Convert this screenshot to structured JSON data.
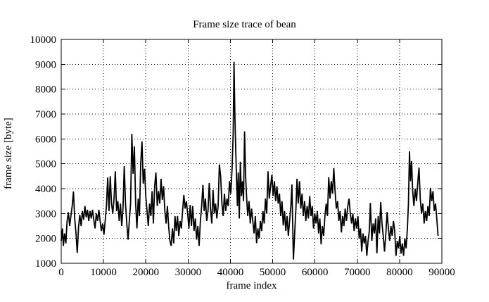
{
  "chart_data": {
    "type": "line",
    "title": "Frame size trace of bean",
    "xlabel": "frame index",
    "ylabel": "frame size [byte]",
    "xlim": [
      0,
      90000
    ],
    "ylim": [
      1000,
      10000
    ],
    "xticks": [
      0,
      10000,
      20000,
      30000,
      40000,
      50000,
      60000,
      70000,
      80000,
      90000
    ],
    "yticks": [
      1000,
      2000,
      3000,
      4000,
      5000,
      6000,
      7000,
      8000,
      9000,
      10000
    ],
    "grid": "dotted",
    "legend_position": "none",
    "colors": {
      "line": "#000000",
      "background": "#ffffff",
      "grid": "#000000",
      "text": "#000000"
    },
    "series": [
      {
        "name": "frame size trace",
        "points": [
          [
            0,
            1900
          ],
          [
            300,
            2400
          ],
          [
            500,
            1700
          ],
          [
            800,
            2200
          ],
          [
            1100,
            1800
          ],
          [
            1400,
            2700
          ],
          [
            1700,
            3050
          ],
          [
            2000,
            2500
          ],
          [
            2300,
            2900
          ],
          [
            2600,
            3300
          ],
          [
            2900,
            3890
          ],
          [
            3200,
            2800
          ],
          [
            3500,
            2200
          ],
          [
            3800,
            1420
          ],
          [
            4100,
            2450
          ],
          [
            4400,
            2950
          ],
          [
            4700,
            2500
          ],
          [
            5000,
            3100
          ],
          [
            5300,
            2750
          ],
          [
            5600,
            3300
          ],
          [
            5900,
            2850
          ],
          [
            6200,
            3150
          ],
          [
            6500,
            2700
          ],
          [
            6800,
            3100
          ],
          [
            7100,
            2800
          ],
          [
            7400,
            3150
          ],
          [
            7700,
            2750
          ],
          [
            8000,
            2400
          ],
          [
            8300,
            3000
          ],
          [
            8600,
            2700
          ],
          [
            8900,
            3150
          ],
          [
            9200,
            2700
          ],
          [
            9500,
            2300
          ],
          [
            9800,
            2600
          ],
          [
            10100,
            2150
          ],
          [
            10400,
            2700
          ],
          [
            10700,
            3300
          ],
          [
            11000,
            4450
          ],
          [
            11300,
            3100
          ],
          [
            11600,
            4500
          ],
          [
            11900,
            3400
          ],
          [
            12200,
            3000
          ],
          [
            12500,
            3600
          ],
          [
            12800,
            4700
          ],
          [
            13100,
            3100
          ],
          [
            13400,
            3500
          ],
          [
            13700,
            2700
          ],
          [
            14000,
            3400
          ],
          [
            14300,
            2500
          ],
          [
            14600,
            3200
          ],
          [
            14900,
            4900
          ],
          [
            15200,
            3400
          ],
          [
            15500,
            2600
          ],
          [
            15800,
            1950
          ],
          [
            16100,
            2700
          ],
          [
            16400,
            3400
          ],
          [
            16700,
            6200
          ],
          [
            17000,
            4600
          ],
          [
            17300,
            5700
          ],
          [
            17600,
            3400
          ],
          [
            17900,
            2400
          ],
          [
            18200,
            3600
          ],
          [
            18500,
            2900
          ],
          [
            18800,
            5000
          ],
          [
            19100,
            5900
          ],
          [
            19400,
            4200
          ],
          [
            19700,
            4800
          ],
          [
            20000,
            3700
          ],
          [
            20300,
            3100
          ],
          [
            20600,
            2500
          ],
          [
            20900,
            3400
          ],
          [
            21200,
            2900
          ],
          [
            21500,
            3900
          ],
          [
            21800,
            2600
          ],
          [
            22100,
            4100
          ],
          [
            22400,
            4650
          ],
          [
            22700,
            3300
          ],
          [
            23000,
            3900
          ],
          [
            23300,
            3400
          ],
          [
            23600,
            4400
          ],
          [
            23900,
            3550
          ],
          [
            24200,
            4100
          ],
          [
            24500,
            3100
          ],
          [
            24800,
            2600
          ],
          [
            25100,
            3300
          ],
          [
            25400,
            2500
          ],
          [
            25700,
            1900
          ],
          [
            26000,
            1700
          ],
          [
            26300,
            2400
          ],
          [
            26600,
            1800
          ],
          [
            26900,
            2900
          ],
          [
            27200,
            2300
          ],
          [
            27500,
            2900
          ],
          [
            27800,
            2100
          ],
          [
            28100,
            2700
          ],
          [
            28400,
            2400
          ],
          [
            28700,
            3100
          ],
          [
            29000,
            3750
          ],
          [
            29300,
            3200
          ],
          [
            29600,
            3500
          ],
          [
            29900,
            3000
          ],
          [
            30200,
            2400
          ],
          [
            30500,
            3350
          ],
          [
            30800,
            2500
          ],
          [
            31100,
            3300
          ],
          [
            31400,
            2300
          ],
          [
            31700,
            2800
          ],
          [
            32000,
            1950
          ],
          [
            32300,
            2500
          ],
          [
            32600,
            1700
          ],
          [
            32900,
            2700
          ],
          [
            33200,
            3300
          ],
          [
            33500,
            4150
          ],
          [
            33800,
            3100
          ],
          [
            34100,
            3600
          ],
          [
            34400,
            2700
          ],
          [
            34700,
            3100
          ],
          [
            35000,
            4230
          ],
          [
            35300,
            3200
          ],
          [
            35600,
            2600
          ],
          [
            35900,
            3950
          ],
          [
            36200,
            3000
          ],
          [
            36500,
            3400
          ],
          [
            36800,
            2800
          ],
          [
            37100,
            3300
          ],
          [
            37400,
            4970
          ],
          [
            37700,
            4500
          ],
          [
            38000,
            3400
          ],
          [
            38300,
            2900
          ],
          [
            38600,
            3800
          ],
          [
            38900,
            3100
          ],
          [
            39200,
            3600
          ],
          [
            39500,
            3300
          ],
          [
            39800,
            4300
          ],
          [
            40100,
            3800
          ],
          [
            40400,
            4790
          ],
          [
            40650,
            6200
          ],
          [
            40850,
            9100
          ],
          [
            41050,
            7000
          ],
          [
            41250,
            5600
          ],
          [
            41450,
            4400
          ],
          [
            41650,
            3300
          ],
          [
            41850,
            4650
          ],
          [
            42100,
            2800
          ],
          [
            42350,
            5080
          ],
          [
            42600,
            3700
          ],
          [
            42850,
            4300
          ],
          [
            43100,
            3500
          ],
          [
            43350,
            6300
          ],
          [
            43600,
            4500
          ],
          [
            43850,
            3600
          ],
          [
            44100,
            2900
          ],
          [
            44400,
            3500
          ],
          [
            44700,
            2600
          ],
          [
            45000,
            3200
          ],
          [
            45300,
            2700
          ],
          [
            45600,
            2200
          ],
          [
            45900,
            2900
          ],
          [
            46200,
            1810
          ],
          [
            46500,
            2400
          ],
          [
            46800,
            2000
          ],
          [
            47100,
            2700
          ],
          [
            47400,
            2300
          ],
          [
            47700,
            3100
          ],
          [
            48000,
            2600
          ],
          [
            48300,
            3600
          ],
          [
            48600,
            3000
          ],
          [
            48900,
            4700
          ],
          [
            49200,
            3600
          ],
          [
            49500,
            4100
          ],
          [
            49800,
            4560
          ],
          [
            50100,
            3700
          ],
          [
            50400,
            4300
          ],
          [
            50700,
            3500
          ],
          [
            51000,
            4100
          ],
          [
            51300,
            3400
          ],
          [
            51600,
            3800
          ],
          [
            51900,
            2900
          ],
          [
            52200,
            3500
          ],
          [
            52500,
            2520
          ],
          [
            52800,
            3100
          ],
          [
            53100,
            2300
          ],
          [
            53400,
            2900
          ],
          [
            53700,
            2100
          ],
          [
            54000,
            2700
          ],
          [
            54300,
            3300
          ],
          [
            54550,
            4170
          ],
          [
            54900,
            1150
          ],
          [
            55200,
            2200
          ],
          [
            55500,
            3200
          ],
          [
            55750,
            4400
          ],
          [
            56050,
            3400
          ],
          [
            56350,
            4300
          ],
          [
            56650,
            3200
          ],
          [
            56950,
            3800
          ],
          [
            57250,
            2900
          ],
          [
            57550,
            3500
          ],
          [
            57850,
            2700
          ],
          [
            58150,
            3300
          ],
          [
            58450,
            2800
          ],
          [
            58750,
            3700
          ],
          [
            59050,
            2900
          ],
          [
            59350,
            3300
          ],
          [
            59650,
            2400
          ],
          [
            59950,
            3000
          ],
          [
            60250,
            2600
          ],
          [
            60550,
            3100
          ],
          [
            60850,
            2200
          ],
          [
            61150,
            2800
          ],
          [
            61450,
            1760
          ],
          [
            61750,
            2500
          ],
          [
            62050,
            2100
          ],
          [
            62350,
            2900
          ],
          [
            62650,
            3400
          ],
          [
            62950,
            2900
          ],
          [
            63250,
            4460
          ],
          [
            63550,
            3600
          ],
          [
            63850,
            4300
          ],
          [
            64150,
            3800
          ],
          [
            64450,
            4830
          ],
          [
            64750,
            3900
          ],
          [
            65050,
            3200
          ],
          [
            65350,
            3500
          ],
          [
            65650,
            2700
          ],
          [
            65950,
            3100
          ],
          [
            66250,
            2240
          ],
          [
            66550,
            2900
          ],
          [
            66850,
            2500
          ],
          [
            67150,
            3200
          ],
          [
            67450,
            2700
          ],
          [
            67750,
            3300
          ],
          [
            68050,
            3600
          ],
          [
            68350,
            3000
          ],
          [
            68650,
            2600
          ],
          [
            68950,
            3000
          ],
          [
            69250,
            2300
          ],
          [
            69550,
            2800
          ],
          [
            69850,
            2400
          ],
          [
            70150,
            2900
          ],
          [
            70450,
            2000
          ],
          [
            70750,
            2400
          ],
          [
            71050,
            1470
          ],
          [
            71350,
            2200
          ],
          [
            71650,
            1800
          ],
          [
            71950,
            2100
          ],
          [
            72250,
            1300
          ],
          [
            72550,
            1900
          ],
          [
            72850,
            2300
          ],
          [
            73100,
            3430
          ],
          [
            73450,
            1900
          ],
          [
            73750,
            2600
          ],
          [
            74050,
            2200
          ],
          [
            74350,
            2800
          ],
          [
            74650,
            1400
          ],
          [
            74950,
            2900
          ],
          [
            75250,
            2200
          ],
          [
            75550,
            3460
          ],
          [
            75850,
            2600
          ],
          [
            76150,
            2100
          ],
          [
            76450,
            1470
          ],
          [
            76750,
            2200
          ],
          [
            77050,
            3060
          ],
          [
            77350,
            2400
          ],
          [
            77650,
            1900
          ],
          [
            77950,
            2500
          ],
          [
            78250,
            2100
          ],
          [
            78550,
            2700
          ],
          [
            78850,
            2300
          ],
          [
            79150,
            1300
          ],
          [
            79450,
            1900
          ],
          [
            79750,
            1600
          ],
          [
            80050,
            2100
          ],
          [
            80350,
            1390
          ],
          [
            80650,
            1800
          ],
          [
            80950,
            1300
          ],
          [
            81250,
            2000
          ],
          [
            81550,
            1600
          ],
          [
            81850,
            2400
          ],
          [
            82100,
            3400
          ],
          [
            82350,
            5500
          ],
          [
            82600,
            4300
          ],
          [
            82850,
            5110
          ],
          [
            83100,
            3900
          ],
          [
            83400,
            3300
          ],
          [
            83700,
            4000
          ],
          [
            84000,
            3500
          ],
          [
            84300,
            4200
          ],
          [
            84600,
            4850
          ],
          [
            84900,
            3600
          ],
          [
            85200,
            3000
          ],
          [
            85500,
            3400
          ],
          [
            85800,
            2600
          ],
          [
            86100,
            3100
          ],
          [
            86400,
            2700
          ],
          [
            86700,
            3300
          ],
          [
            87000,
            2900
          ],
          [
            87300,
            4030
          ],
          [
            87600,
            3500
          ],
          [
            87900,
            3900
          ],
          [
            88200,
            3100
          ],
          [
            88500,
            3400
          ],
          [
            88800,
            2800
          ],
          [
            89100,
            2100
          ]
        ]
      }
    ]
  }
}
